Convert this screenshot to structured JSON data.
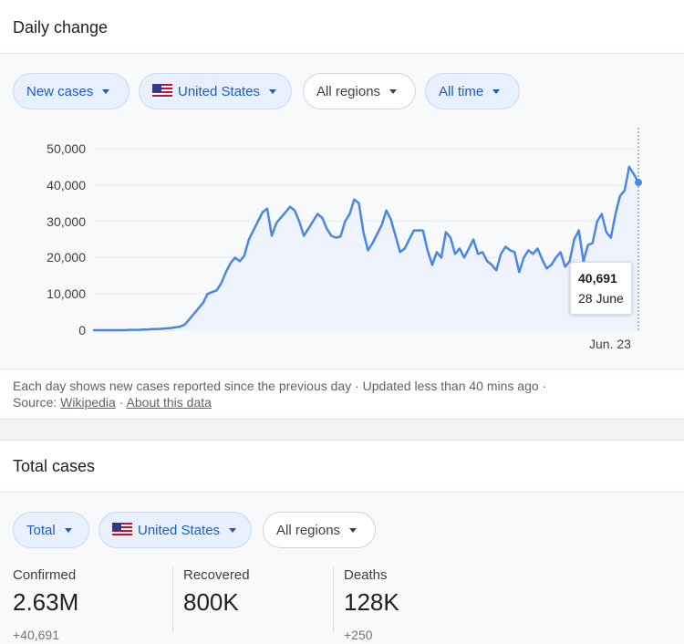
{
  "daily_change": {
    "title": "Daily change",
    "filters": {
      "metric": "New cases",
      "country": "United States",
      "region": "All regions",
      "period": "All time"
    },
    "chart": {
      "y_ticks": [
        "50,000",
        "40,000",
        "30,000",
        "20,000",
        "10,000",
        "0"
      ],
      "x_tick": "Jun. 23",
      "tooltip_value": "40,691",
      "tooltip_date": "28 June"
    },
    "footnote": {
      "text": "Each day shows new cases reported since the previous day · Updated less than 40 mins ago  ·",
      "source_label": "Source:",
      "source_link": "Wikipedia",
      "separator": "·",
      "about_link": "About this data"
    }
  },
  "total_cases": {
    "title": "Total cases",
    "filters": {
      "metric": "Total",
      "country": "United States",
      "region": "All regions"
    },
    "stats": [
      {
        "label": "Confirmed",
        "value": "2.63M",
        "delta": "+40,691"
      },
      {
        "label": "Recovered",
        "value": "800K",
        "delta": ""
      },
      {
        "label": "Deaths",
        "value": "128K",
        "delta": "+250"
      }
    ]
  },
  "colors": {
    "line": "#4a86e8",
    "fill": "#eef3fd",
    "chip_blue_text": "#1a5dc9",
    "chip_blue_bg": "#e8f0fe"
  },
  "chart_data": {
    "type": "area",
    "title": "",
    "xlabel": "",
    "ylabel": "",
    "ylim": [
      0,
      50000
    ],
    "x_tick_labels": [
      "Jun. 23"
    ],
    "highlight": {
      "label": "28 June",
      "value": 40691
    },
    "series": [
      {
        "values": [
          0,
          0,
          0,
          0,
          0,
          0,
          0,
          0,
          100,
          100,
          100,
          200,
          200,
          300,
          300,
          400,
          500,
          600,
          800,
          1000,
          1500,
          3000,
          4500,
          6000,
          7500,
          10000,
          10500,
          11000,
          13000,
          16000,
          18500,
          20000,
          19000,
          20500,
          25000,
          27500,
          30000,
          32500,
          33500,
          26000,
          29500,
          31000,
          32500,
          34000,
          33000,
          30000,
          26000,
          28000,
          30000,
          32000,
          31000,
          28000,
          26000,
          25500,
          25800,
          30000,
          32000,
          36000,
          35000,
          27000,
          22000,
          24000,
          26500,
          29000,
          33000,
          30500,
          26000,
          21500,
          22500,
          25000,
          27500,
          27500,
          27500,
          22000,
          18000,
          21500,
          20000,
          27000,
          25500,
          21000,
          22500,
          20000,
          22500,
          25000,
          21000,
          21500,
          19000,
          18000,
          16500,
          21000,
          23000,
          22000,
          21500,
          16000,
          20000,
          22000,
          21000,
          22500,
          19500,
          17000,
          18000,
          20000,
          21500,
          17500,
          19000,
          25000,
          27500,
          19000,
          23500,
          24000,
          30000,
          32000,
          27000,
          25500,
          32000,
          37000,
          38500,
          45000,
          43000,
          40691
        ]
      }
    ]
  }
}
